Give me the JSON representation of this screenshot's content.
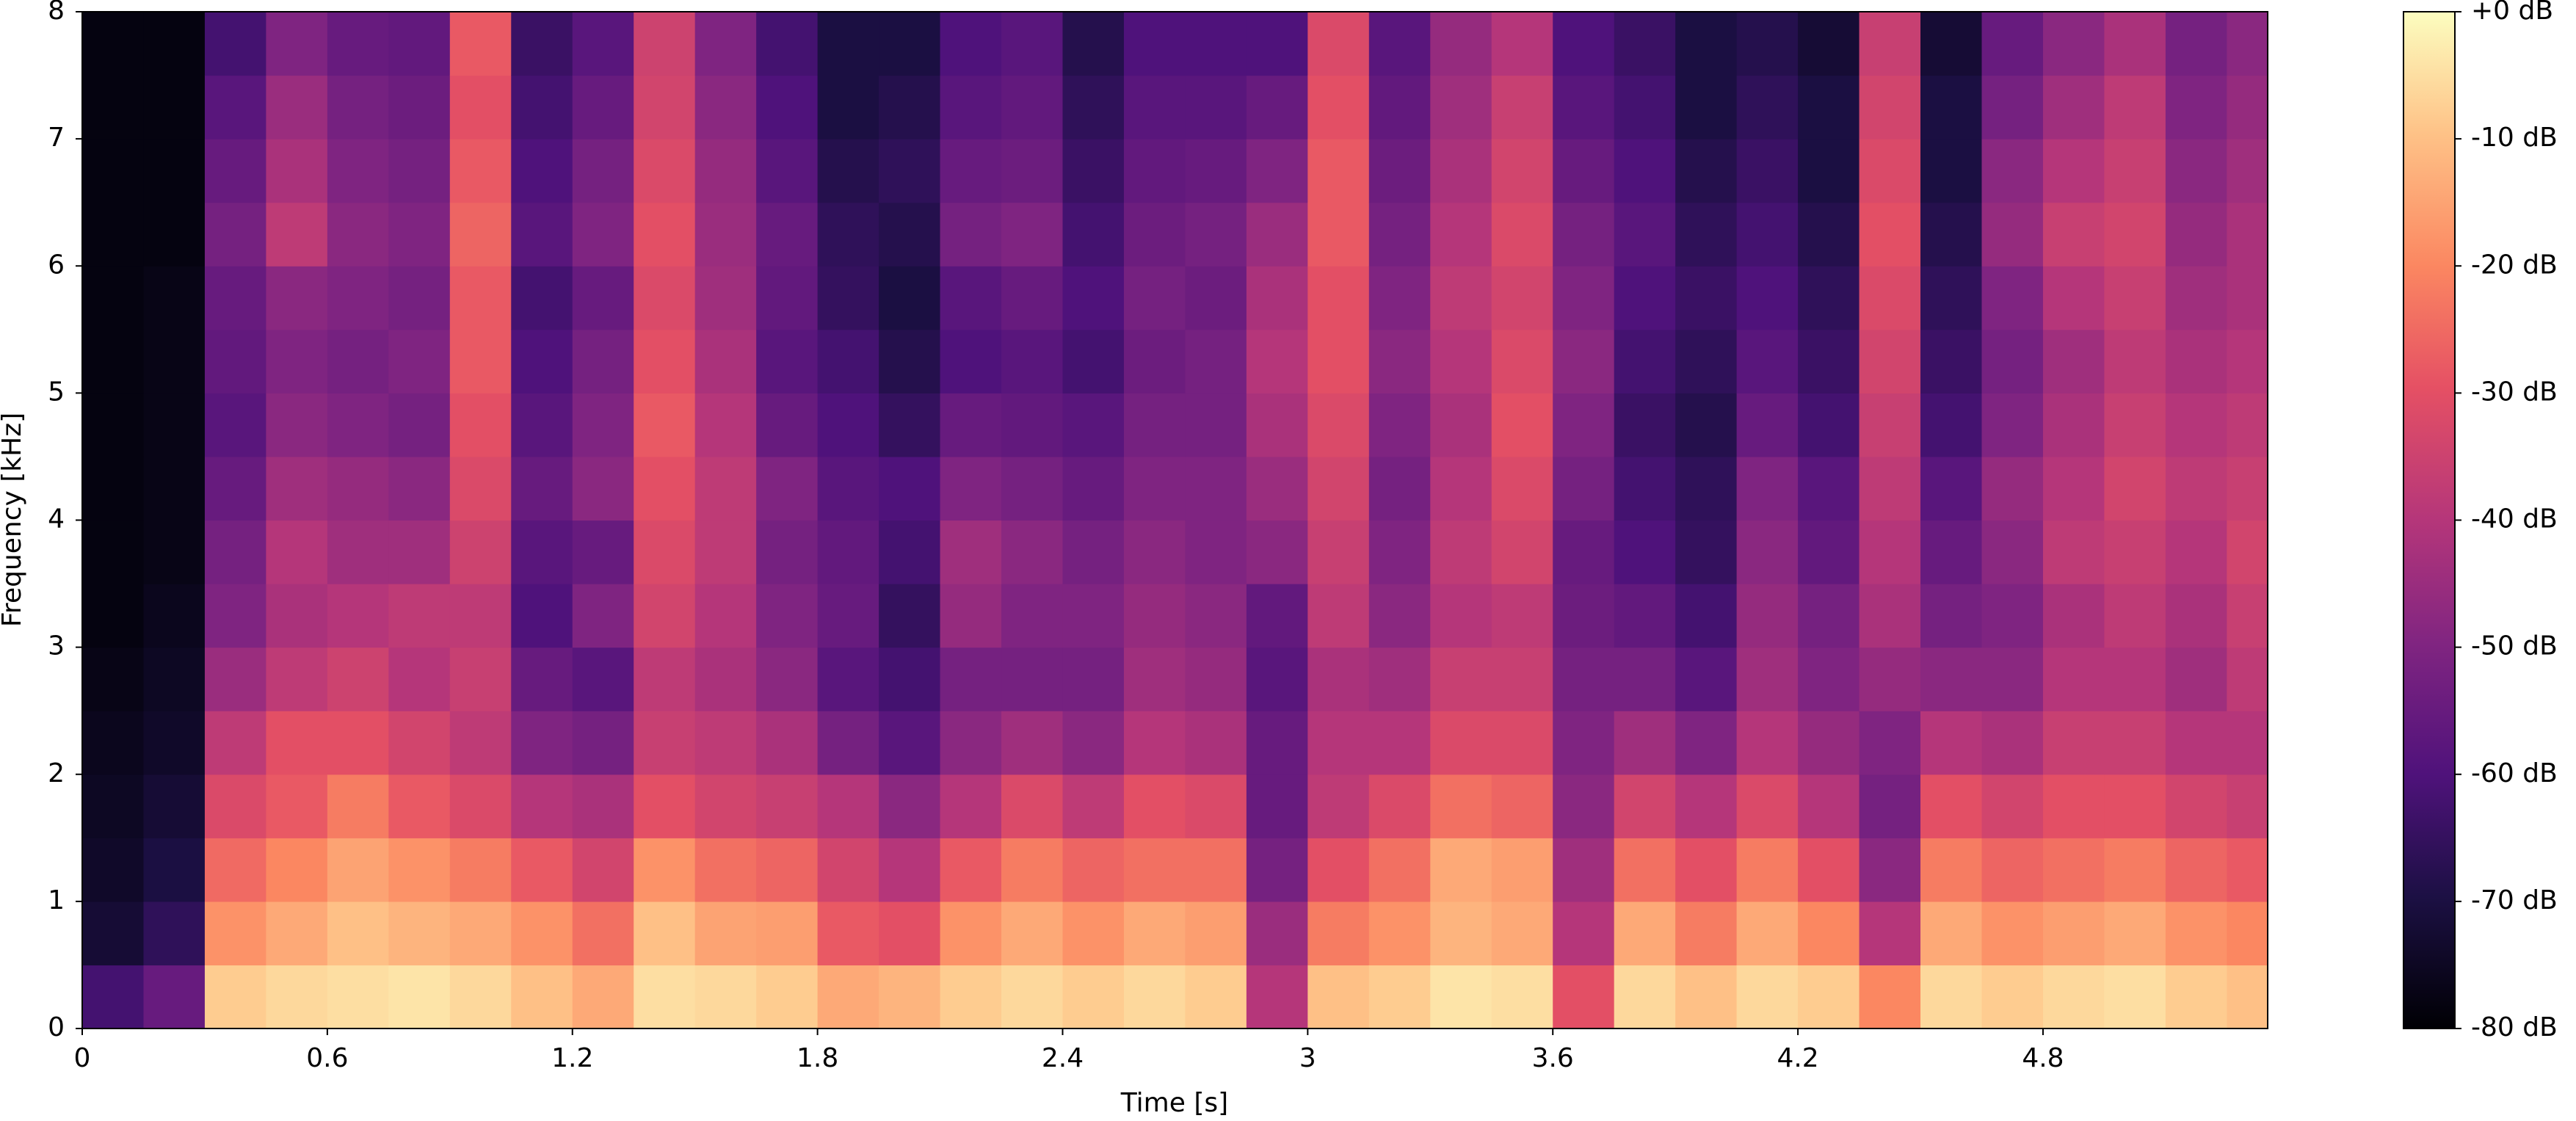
{
  "chart_data": {
    "type": "spectrogram",
    "xlabel": "Time [s]",
    "ylabel": "Frequency [kHz]",
    "colormap": "magma",
    "xlim": [
      0,
      5.35
    ],
    "ylim": [
      0,
      8
    ],
    "xticks": [
      0,
      0.6,
      1.2,
      1.8,
      2.4,
      3,
      3.6,
      4.2,
      4.8
    ],
    "yticks": [
      0,
      1,
      2,
      3,
      4,
      5,
      6,
      7,
      8
    ],
    "zlim": [
      -80,
      0
    ],
    "zticks": [
      {
        "value": 0,
        "label": "+0 dB"
      },
      {
        "value": -10,
        "label": "-10 dB"
      },
      {
        "value": -20,
        "label": "-20 dB"
      },
      {
        "value": -30,
        "label": "-30 dB"
      },
      {
        "value": -40,
        "label": "-40 dB"
      },
      {
        "value": -50,
        "label": "-50 dB"
      },
      {
        "value": -60,
        "label": "-60 dB"
      },
      {
        "value": -70,
        "label": "-70 dB"
      },
      {
        "value": -80,
        "label": "-80 dB"
      }
    ],
    "x": [
      0,
      0.15,
      0.3,
      0.45,
      0.6,
      0.75,
      0.9,
      1.05,
      1.2,
      1.35,
      1.5,
      1.65,
      1.8,
      1.95,
      2.1,
      2.25,
      2.4,
      2.55,
      2.7,
      2.85,
      3.0,
      3.15,
      3.3,
      3.45,
      3.6,
      3.75,
      3.9,
      4.05,
      4.2,
      4.35,
      4.5,
      4.65,
      4.8,
      4.95,
      5.1,
      5.25
    ],
    "y": [
      0,
      0.5,
      1,
      1.5,
      2,
      2.5,
      3,
      3.5,
      4,
      4.5,
      5,
      5.5,
      6,
      6.5,
      7,
      7.5
    ],
    "values": [
      [
        -62,
        -72,
        -74,
        -75,
        -76,
        -77,
        -78,
        -78,
        -78,
        -78,
        -78,
        -78,
        -78,
        -78,
        -78,
        -78
      ],
      [
        -55,
        -66,
        -70,
        -72,
        -74,
        -75,
        -76,
        -77,
        -77,
        -77,
        -77,
        -77,
        -78,
        -78,
        -78,
        -78
      ],
      [
        -8,
        -18,
        -25,
        -32,
        -38,
        -45,
        -50,
        -52,
        -55,
        -58,
        -56,
        -55,
        -52,
        -55,
        -58,
        -62
      ],
      [
        -6,
        -14,
        -20,
        -28,
        -30,
        -38,
        -42,
        -40,
        -44,
        -48,
        -50,
        -48,
        -38,
        -42,
        -45,
        -50
      ],
      [
        -5,
        -10,
        -15,
        -22,
        -30,
        -35,
        -40,
        -44,
        -46,
        -50,
        -52,
        -50,
        -48,
        -50,
        -52,
        -55
      ],
      [
        -4,
        -12,
        -18,
        -28,
        -34,
        -40,
        -38,
        -44,
        -48,
        -52,
        -50,
        -52,
        -50,
        -52,
        -54,
        -56
      ],
      [
        -6,
        -14,
        -22,
        -32,
        -38,
        -36,
        -38,
        -35,
        -32,
        -30,
        -28,
        -28,
        -26,
        -28,
        -30,
        -28
      ],
      [
        -10,
        -18,
        -28,
        -40,
        -50,
        -55,
        -60,
        -58,
        -55,
        -58,
        -60,
        -62,
        -58,
        -60,
        -62,
        -64
      ],
      [
        -14,
        -24,
        -34,
        -42,
        -52,
        -58,
        -50,
        -55,
        -48,
        -50,
        -52,
        -55,
        -50,
        -52,
        -55,
        -58
      ],
      [
        -5,
        -10,
        -18,
        -30,
        -36,
        -38,
        -34,
        -32,
        -30,
        -28,
        -30,
        -32,
        -30,
        -32,
        -34,
        -35
      ],
      [
        -6,
        -15,
        -24,
        -34,
        -38,
        -42,
        -40,
        -38,
        -38,
        -40,
        -42,
        -44,
        -45,
        -46,
        -48,
        -50
      ],
      [
        -8,
        -16,
        -26,
        -36,
        -42,
        -48,
        -50,
        -52,
        -50,
        -55,
        -58,
        -56,
        -55,
        -58,
        -60,
        -62
      ],
      [
        -14,
        -28,
        -34,
        -40,
        -52,
        -58,
        -55,
        -56,
        -58,
        -60,
        -62,
        -65,
        -66,
        -68,
        -70,
        -70
      ],
      [
        -12,
        -30,
        -40,
        -48,
        -58,
        -62,
        -65,
        -62,
        -60,
        -65,
        -68,
        -70,
        -68,
        -66,
        -68,
        -70
      ],
      [
        -8,
        -18,
        -28,
        -40,
        -48,
        -52,
        -46,
        -44,
        -50,
        -55,
        -60,
        -58,
        -52,
        -55,
        -58,
        -60
      ],
      [
        -6,
        -14,
        -22,
        -32,
        -44,
        -52,
        -50,
        -48,
        -52,
        -56,
        -58,
        -55,
        -50,
        -54,
        -56,
        -58
      ],
      [
        -8,
        -18,
        -26,
        -38,
        -48,
        -52,
        -50,
        -52,
        -55,
        -58,
        -62,
        -60,
        -62,
        -64,
        -66,
        -68
      ],
      [
        -6,
        -14,
        -24,
        -30,
        -40,
        -44,
        -46,
        -48,
        -50,
        -52,
        -54,
        -52,
        -54,
        -56,
        -58,
        -60
      ],
      [
        -8,
        -16,
        -24,
        -32,
        -42,
        -46,
        -48,
        -50,
        -50,
        -52,
        -52,
        -54,
        -52,
        -55,
        -58,
        -60
      ],
      [
        -40,
        -45,
        -52,
        -55,
        -55,
        -58,
        -56,
        -48,
        -45,
        -42,
        -40,
        -42,
        -45,
        -50,
        -55,
        -60
      ],
      [
        -10,
        -22,
        -30,
        -38,
        -40,
        -42,
        -38,
        -36,
        -34,
        -32,
        -30,
        -30,
        -28,
        -28,
        -30,
        -32
      ],
      [
        -8,
        -18,
        -24,
        -32,
        -40,
        -44,
        -48,
        -50,
        -52,
        -50,
        -48,
        -50,
        -52,
        -54,
        -56,
        -58
      ],
      [
        -4,
        -12,
        -14,
        -24,
        -32,
        -36,
        -40,
        -38,
        -40,
        -42,
        -40,
        -38,
        -40,
        -42,
        -44,
        -46
      ],
      [
        -5,
        -14,
        -16,
        -26,
        -32,
        -36,
        -38,
        -34,
        -32,
        -30,
        -32,
        -34,
        -32,
        -34,
        -36,
        -40
      ],
      [
        -30,
        -40,
        -44,
        -48,
        -50,
        -52,
        -54,
        -55,
        -52,
        -50,
        -48,
        -50,
        -52,
        -55,
        -58,
        -60
      ],
      [
        -6,
        -14,
        -24,
        -34,
        -44,
        -52,
        -56,
        -60,
        -62,
        -64,
        -62,
        -60,
        -58,
        -60,
        -62,
        -64
      ],
      [
        -10,
        -22,
        -30,
        -40,
        -50,
        -58,
        -62,
        -65,
        -66,
        -68,
        -66,
        -64,
        -66,
        -68,
        -70,
        -70
      ],
      [
        -6,
        -14,
        -22,
        -32,
        -40,
        -44,
        -46,
        -48,
        -50,
        -55,
        -58,
        -60,
        -62,
        -64,
        -66,
        -68
      ],
      [
        -8,
        -20,
        -30,
        -40,
        -46,
        -50,
        -52,
        -56,
        -58,
        -62,
        -64,
        -66,
        -68,
        -70,
        -70,
        -72
      ],
      [
        -20,
        -40,
        -48,
        -52,
        -50,
        -46,
        -42,
        -40,
        -38,
        -36,
        -34,
        -32,
        -30,
        -32,
        -34,
        -36
      ],
      [
        -6,
        -14,
        -22,
        -30,
        -40,
        -48,
        -52,
        -55,
        -58,
        -62,
        -64,
        -66,
        -68,
        -70,
        -70,
        -72
      ],
      [
        -8,
        -18,
        -26,
        -34,
        -42,
        -48,
        -50,
        -48,
        -46,
        -50,
        -52,
        -50,
        -46,
        -48,
        -52,
        -55
      ],
      [
        -6,
        -16,
        -24,
        -30,
        -36,
        -40,
        -42,
        -38,
        -40,
        -42,
        -44,
        -40,
        -36,
        -40,
        -44,
        -48
      ],
      [
        -5,
        -14,
        -22,
        -30,
        -36,
        -40,
        -38,
        -36,
        -34,
        -36,
        -38,
        -36,
        -34,
        -36,
        -38,
        -42
      ],
      [
        -8,
        -18,
        -26,
        -34,
        -40,
        -44,
        -42,
        -40,
        -38,
        -40,
        -42,
        -44,
        -46,
        -48,
        -50,
        -52
      ],
      [
        -10,
        -20,
        -28,
        -36,
        -40,
        -38,
        -36,
        -34,
        -36,
        -38,
        -40,
        -42,
        -42,
        -44,
        -46,
        -48
      ]
    ]
  }
}
